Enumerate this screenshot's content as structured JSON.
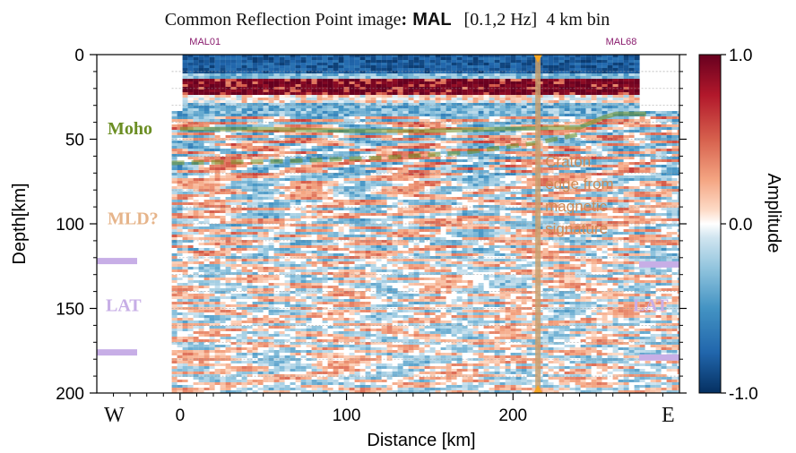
{
  "title": {
    "prefix": "Common Reflection Point image",
    "sep": ":",
    "name": "MAL",
    "band": "[0.1,2 Hz]",
    "bin": "4 km bin"
  },
  "chart_data": {
    "type": "heatmap",
    "xlabel": "Distance [km]",
    "ylabel": "Depth[km]",
    "xlim": [
      -50,
      300
    ],
    "ylim": [
      200,
      0
    ],
    "x_ticks": [
      0,
      100,
      200
    ],
    "y_ticks": [
      0,
      50,
      100,
      150,
      200
    ],
    "colorbar": {
      "label": "Amplitude",
      "ticks": [
        "1.0",
        "0.0",
        "-1.0"
      ],
      "range": [
        -1.0,
        1.0
      ],
      "colors": {
        "high": "#67001f",
        "mid": "#f7f7f7",
        "low": "#053061"
      }
    },
    "stations": [
      {
        "name": "MAL01",
        "x": 15
      },
      {
        "name": "MAL68",
        "x": 265
      }
    ],
    "direction": {
      "west": "W",
      "east": "E"
    },
    "moho": {
      "label": "Moho",
      "color": "#6b8e23",
      "solid": [
        [
          0,
          44
        ],
        [
          50,
          44
        ],
        [
          100,
          45
        ],
        [
          150,
          45
        ],
        [
          190,
          44
        ],
        [
          240,
          43
        ],
        [
          255,
          37
        ],
        [
          262,
          35
        ],
        [
          280,
          35
        ]
      ],
      "dashed": [
        [
          -5,
          64
        ],
        [
          60,
          63
        ],
        [
          120,
          61
        ],
        [
          170,
          58
        ],
        [
          215,
          52
        ],
        [
          240,
          47
        ]
      ]
    },
    "mld": {
      "label": "MLD?",
      "color": "#e6b48a",
      "depth": 97
    },
    "lat": {
      "label": "LAT",
      "color": "#c7aee6",
      "west_marks": [
        122,
        176
      ],
      "east_marks": [
        124,
        179
      ],
      "label_depth": 148
    },
    "craton_edge": {
      "lines": [
        "Craton",
        "edge from",
        "magnetic",
        "signature"
      ],
      "x": 215,
      "color": "#c8a070",
      "marker_color": "#f5a623"
    },
    "data_extent": {
      "x": [
        -5,
        300
      ],
      "top_depth": 0
    }
  }
}
